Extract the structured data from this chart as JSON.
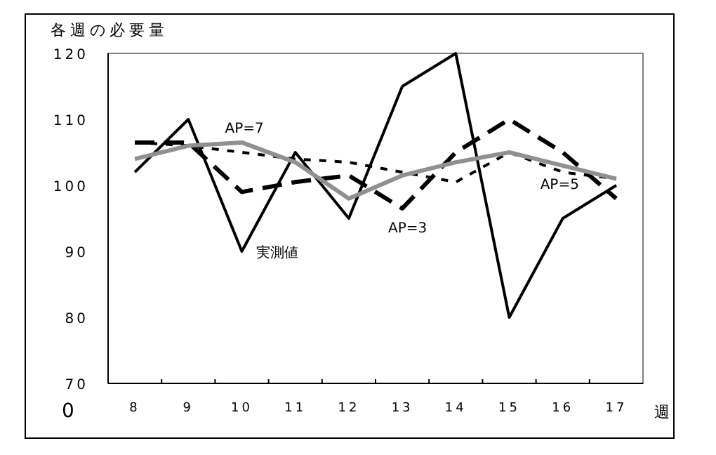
{
  "chart_data": {
    "type": "line",
    "ylabel": "各週の必要量",
    "xlabel": "週",
    "categories": [
      "8",
      "9",
      "10",
      "11",
      "12",
      "13",
      "14",
      "15",
      "16",
      "17"
    ],
    "ylim": [
      70,
      120
    ],
    "yticks": [
      {
        "value": 70,
        "label": "70"
      },
      80,
      90,
      100,
      110,
      120
    ],
    "grid": false,
    "legend": false,
    "marker": "none",
    "series": [
      {
        "name": "実測値",
        "color": "#000000",
        "line_style": "solid",
        "values": [
          102,
          110,
          90,
          105,
          95,
          115,
          120,
          80,
          95,
          100
        ]
      },
      {
        "name": "AP=3",
        "color": "#000000",
        "line_style": "dashed",
        "values": [
          106.5,
          106.5,
          99,
          100.5,
          101.5,
          96.5,
          105,
          110,
          105,
          98
        ]
      },
      {
        "name": "AP=5",
        "color": "#000000",
        "line_style": "dotted",
        "values": [
          106.5,
          106,
          105,
          104,
          103.5,
          102,
          100.5,
          105,
          102,
          101
        ]
      },
      {
        "name": "AP=7",
        "color": "#909090",
        "line_style": "solid",
        "values": [
          104,
          106,
          106.5,
          103.5,
          98,
          101.5,
          103.5,
          105,
          103,
          101
        ]
      }
    ],
    "annotations": [
      "0"
    ]
  }
}
